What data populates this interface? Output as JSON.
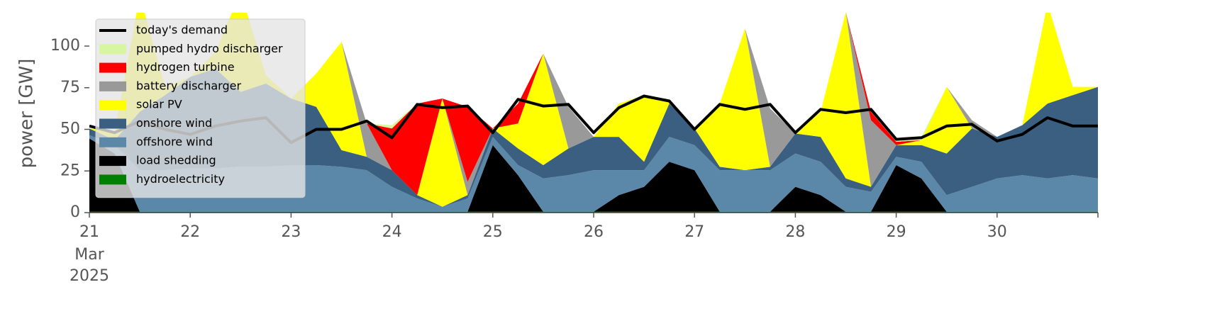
{
  "chart_data": {
    "type": "stacked_area",
    "ylabel": "power [GW]",
    "x": [
      21,
      21.25,
      21.5,
      21.75,
      22,
      22.25,
      22.5,
      22.75,
      23,
      23.25,
      23.5,
      23.75,
      24,
      24.25,
      24.5,
      24.75,
      25,
      25.25,
      25.5,
      25.75,
      26,
      26.25,
      26.5,
      26.75,
      27,
      27.25,
      27.5,
      27.75,
      28,
      28.25,
      28.5,
      28.75,
      29,
      29.25,
      29.5,
      29.75,
      30,
      30.25,
      30.5,
      30.75,
      31
    ],
    "xlim": [
      21,
      31
    ],
    "xticks": [
      21,
      22,
      23,
      24,
      25,
      26,
      27,
      28,
      29,
      30
    ],
    "month_label": "Mar",
    "year_label": "2025",
    "ylim": [
      0,
      120
    ],
    "yticks": [
      0,
      25,
      50,
      75,
      100
    ],
    "legend": "upper left",
    "line_series": {
      "name": "today's demand",
      "color": "#000000",
      "values": [
        52,
        48,
        55,
        50,
        47,
        52,
        55,
        57,
        42,
        50,
        50,
        55,
        45,
        65,
        63,
        64,
        48,
        68,
        64,
        65,
        48,
        63,
        70,
        67,
        50,
        65,
        62,
        65,
        48,
        62,
        60,
        62,
        44,
        45,
        52,
        53,
        43,
        47,
        57,
        52,
        52
      ]
    },
    "series": [
      {
        "name": "pumped hydro discharger",
        "color": "#d8f5a2",
        "values": [
          0,
          0,
          0,
          0,
          0,
          0,
          0,
          0,
          0,
          0,
          0,
          0,
          2,
          0,
          0,
          0,
          0,
          0,
          0,
          0,
          0,
          0,
          0,
          0,
          0,
          0,
          0,
          0,
          0,
          0,
          0,
          0,
          2,
          2,
          0,
          0,
          0,
          0,
          0,
          0,
          0
        ]
      },
      {
        "name": "hydrogen turbine",
        "color": "#ff0000",
        "values": [
          0,
          0,
          0,
          0,
          0,
          0,
          0,
          0,
          0,
          0,
          0,
          0,
          25,
          55,
          0,
          45,
          0,
          12,
          0,
          0,
          0,
          0,
          0,
          0,
          0,
          0,
          0,
          0,
          0,
          0,
          0,
          5,
          2,
          0,
          0,
          0,
          0,
          0,
          0,
          0,
          0
        ]
      },
      {
        "name": "battery discharger",
        "color": "#999999",
        "values": [
          0,
          0,
          0,
          0,
          0,
          0,
          0,
          0,
          0,
          0,
          0,
          20,
          0,
          0,
          0,
          8,
          0,
          0,
          0,
          25,
          0,
          0,
          0,
          0,
          0,
          0,
          0,
          35,
          0,
          0,
          0,
          40,
          0,
          0,
          0,
          5,
          0,
          0,
          0,
          0,
          0
        ]
      },
      {
        "name": "solar PV",
        "color": "#ffff00",
        "values": [
          0,
          5,
          70,
          5,
          0,
          10,
          60,
          5,
          0,
          20,
          65,
          0,
          0,
          0,
          65,
          0,
          0,
          15,
          67,
          0,
          0,
          20,
          40,
          2,
          0,
          38,
          85,
          0,
          0,
          15,
          100,
          0,
          0,
          3,
          40,
          0,
          0,
          0,
          60,
          5,
          0
        ]
      },
      {
        "name": "onshore wind",
        "color": "#3b5f80",
        "values": [
          4,
          3,
          35,
          45,
          55,
          60,
          45,
          50,
          40,
          35,
          10,
          8,
          10,
          2,
          0,
          2,
          5,
          10,
          8,
          16,
          20,
          20,
          5,
          20,
          10,
          2,
          0,
          2,
          12,
          15,
          5,
          3,
          7,
          10,
          25,
          35,
          25,
          30,
          45,
          48,
          55
        ]
      },
      {
        "name": "offshore wind",
        "color": "#5b87a8",
        "values": [
          2,
          5,
          25,
          25,
          26,
          26,
          27,
          27,
          28,
          28,
          27,
          25,
          15,
          8,
          3,
          8,
          5,
          6,
          20,
          22,
          25,
          15,
          10,
          15,
          15,
          25,
          25,
          25,
          20,
          20,
          15,
          12,
          5,
          10,
          10,
          15,
          20,
          22,
          20,
          22,
          20
        ]
      },
      {
        "name": "load shedding",
        "color": "#000000",
        "values": [
          44,
          35,
          0,
          0,
          0,
          0,
          0,
          0,
          0,
          0,
          0,
          0,
          0,
          0,
          0,
          0,
          40,
          22,
          0,
          0,
          0,
          10,
          15,
          30,
          25,
          0,
          0,
          0,
          15,
          10,
          0,
          0,
          28,
          20,
          0,
          0,
          0,
          0,
          0,
          0,
          0
        ]
      },
      {
        "name": "hydroelectricity",
        "color": "#008000",
        "values": [
          0.5,
          0.5,
          0.5,
          0.5,
          0.5,
          0.5,
          0.5,
          0.5,
          0.5,
          0.5,
          0.5,
          0.5,
          0.5,
          0.5,
          0.5,
          0.5,
          0.5,
          0.5,
          0.5,
          0.5,
          0.5,
          0.5,
          0.5,
          0.5,
          0.5,
          0.5,
          0.5,
          0.5,
          0.5,
          0.5,
          0.5,
          0.5,
          0.5,
          0.5,
          0.5,
          0.5,
          0.5,
          0.5,
          0.5,
          0.5,
          0.5
        ]
      }
    ]
  }
}
